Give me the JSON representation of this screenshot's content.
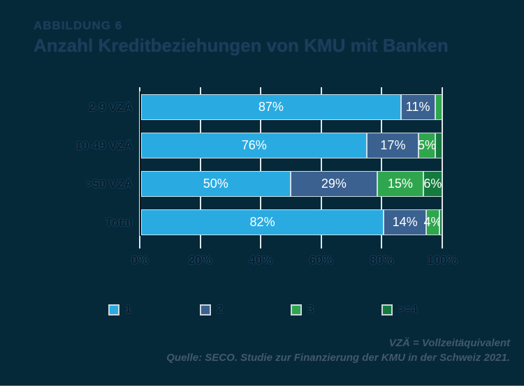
{
  "figure": {
    "kicker": "ABBILDUNG 6",
    "title": "Anzahl Kreditbeziehungen von KMU mit Banken"
  },
  "chart_data": {
    "type": "bar",
    "orientation": "horizontal_stacked",
    "title": "Anzahl Kreditbeziehungen von KMU mit Banken",
    "categories": [
      "2-9 VZÄ",
      "10-49 VZÄ",
      ">50 VZÄ",
      "Total"
    ],
    "series": [
      {
        "name": "1",
        "color": "#29abe2",
        "values": [
          87,
          76,
          50,
          82
        ],
        "labels": [
          "87%",
          "76%",
          "50%",
          "82%"
        ]
      },
      {
        "name": "2",
        "color": "#3a6190",
        "values": [
          11,
          17,
          29,
          14
        ],
        "labels": [
          "11%",
          "17%",
          "29%",
          "14%"
        ]
      },
      {
        "name": "3",
        "color": "#2fa64e",
        "values": [
          2,
          5,
          15,
          4
        ],
        "labels": [
          "",
          "5%",
          "15%",
          "4%"
        ]
      },
      {
        "name": ">=4",
        "color": "#157a3e",
        "values": [
          0,
          2,
          6,
          0.5
        ],
        "labels": [
          "",
          "",
          "6%",
          ""
        ]
      }
    ],
    "xlim": [
      0,
      100
    ],
    "x_ticks": [
      "0%",
      "20%",
      "40%",
      "60%",
      "80%",
      "100%"
    ],
    "grid": true,
    "legend": {
      "position": "bottom",
      "entries": [
        "1",
        "2",
        "3",
        ">=4"
      ]
    }
  },
  "footnotes": {
    "line1": "VZÄ = Vollzeitäquivalent",
    "line2": "Quelle: SECO. Studie zur Finanzierung der KMU in der Schweiz 2021."
  },
  "colors": {
    "background": "#052939",
    "bar_label": "#ffffff",
    "grid": "#dde6ea",
    "axis_line": "#10181d",
    "title_text": "#1d3d5c",
    "footnote_text": "#44586b"
  }
}
